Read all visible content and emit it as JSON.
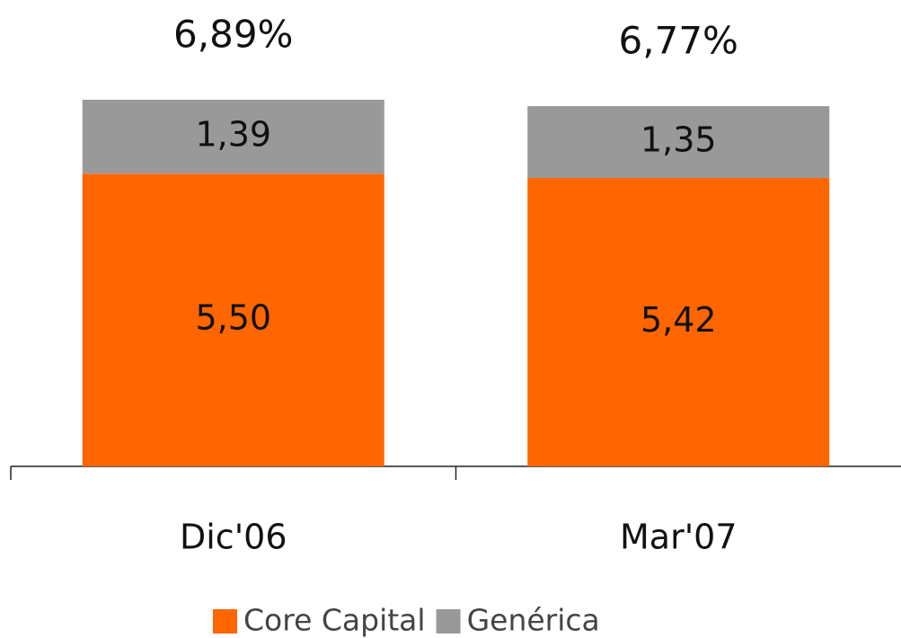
{
  "chart_data": {
    "type": "stacked_bar",
    "categories": [
      "Dic'06",
      "Mar'07"
    ],
    "total_labels": [
      "6,89%",
      "6,77%"
    ],
    "series": [
      {
        "name": "Core Capital",
        "color": "#ff6600",
        "values": [
          5.5,
          5.42
        ],
        "value_labels": [
          "5,50",
          "5,42"
        ]
      },
      {
        "name": "Genérica",
        "color": "#999999",
        "values": [
          1.39,
          1.35
        ],
        "value_labels": [
          "1,39",
          "1,35"
        ]
      }
    ]
  }
}
